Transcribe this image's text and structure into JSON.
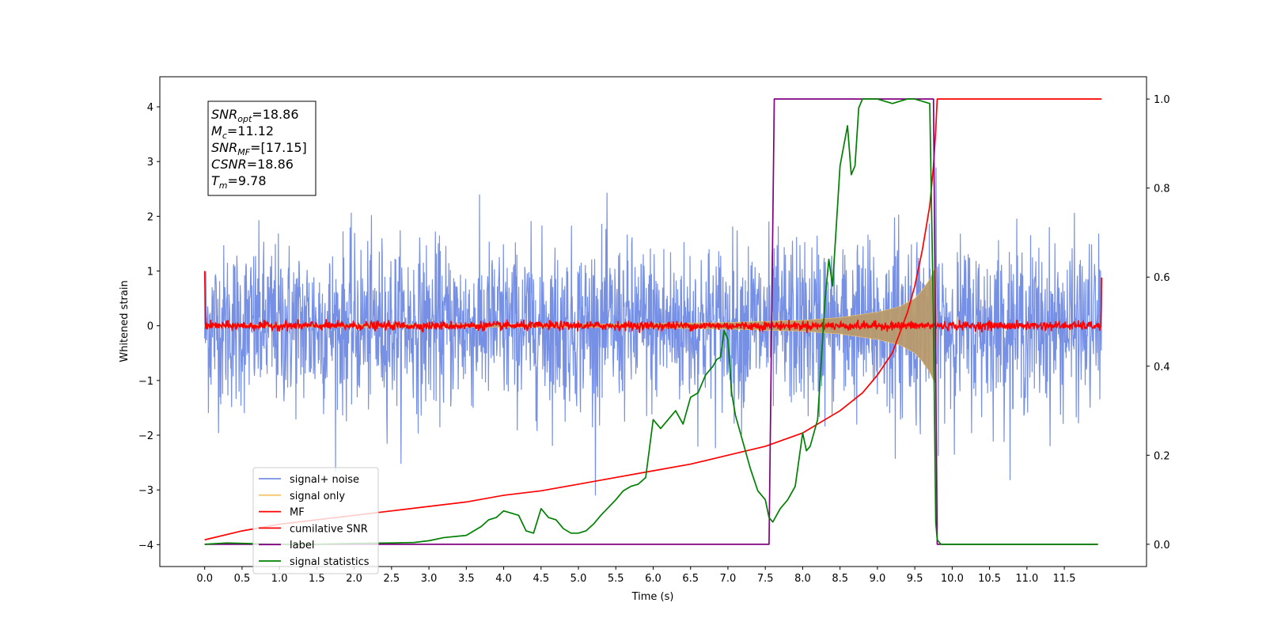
{
  "chart_data": {
    "type": "line",
    "title": "",
    "xlabel": "Time (s)",
    "ylabel": "Whitened strain",
    "xlim": [
      -0.6,
      12.6
    ],
    "ylim": [
      -4.4,
      4.55
    ],
    "y2lim": [
      -0.05,
      1.05
    ],
    "x_ticks": [
      0.0,
      0.5,
      1.0,
      1.5,
      2.0,
      2.5,
      3.0,
      3.5,
      4.0,
      4.5,
      5.0,
      5.5,
      6.0,
      6.5,
      7.0,
      7.5,
      8.0,
      8.5,
      9.0,
      9.5,
      10.0,
      10.5,
      11.0,
      11.5
    ],
    "x_tick_labels": [
      "0.0",
      "0.5",
      "1.0",
      "1.5",
      "2.0",
      "2.5",
      "3.0",
      "3.5",
      "4.0",
      "4.5",
      "5.0",
      "5.5",
      "6.0",
      "6.5",
      "7.0",
      "7.5",
      "8.0",
      "8.5",
      "9.0",
      "9.5",
      "10.0",
      "10.5",
      "11.0",
      "11.5"
    ],
    "y_ticks": [
      -4,
      -3,
      -2,
      -1,
      0,
      1,
      2,
      3,
      4
    ],
    "y_tick_labels": [
      "−4",
      "−3",
      "−2",
      "−1",
      "0",
      "1",
      "2",
      "3",
      "4"
    ],
    "y2_ticks": [
      0.0,
      0.2,
      0.4,
      0.6,
      0.8,
      1.0
    ],
    "y2_tick_labels": [
      "0.0",
      "0.2",
      "0.4",
      "0.6",
      "0.8",
      "1.0"
    ],
    "grid": false,
    "legend_position": "lower-left",
    "annotation": {
      "lines": [
        {
          "base": "SNR",
          "sub": "opt",
          "rest": "=18.86"
        },
        {
          "base": "M",
          "sub": "c",
          "rest": "=11.12"
        },
        {
          "base": "SNR",
          "sub": "MF",
          "rest": "=[17.15]"
        },
        {
          "base": "CSNR",
          "sub": "",
          "rest": "=18.86"
        },
        {
          "base": "T",
          "sub": "m",
          "rest": "=9.78"
        }
      ]
    },
    "series": [
      {
        "name": "signal+ noise",
        "axis": "left",
        "color": "#7690e6",
        "kind": "noise_band",
        "x_range": [
          0.0,
          12.0
        ],
        "std": 0.75,
        "range": [
          -4.0,
          4.0
        ],
        "chirp_x": [
          0.0,
          7.0,
          8.5,
          9.5,
          9.78,
          9.82
        ],
        "chirp_amp": [
          0.05,
          0.1,
          0.25,
          0.55,
          1.05,
          0.0
        ]
      },
      {
        "name": "signal only",
        "axis": "left",
        "color": "#f5c76c",
        "kind": "envelope",
        "x": [
          0.0,
          5.0,
          6.0,
          7.0,
          7.5,
          8.0,
          8.5,
          9.0,
          9.3,
          9.5,
          9.6,
          9.7,
          9.75,
          9.78,
          9.8
        ],
        "amplitude": [
          0.02,
          0.03,
          0.04,
          0.06,
          0.08,
          0.1,
          0.15,
          0.25,
          0.35,
          0.5,
          0.65,
          0.85,
          1.0,
          1.05,
          0.0
        ]
      },
      {
        "name": "MF",
        "axis": "left",
        "color": "#ff0000",
        "kind": "noise_line",
        "x_range": [
          0.0,
          12.0
        ],
        "std": 0.04,
        "start_value": 1.0,
        "end_value": 0.88
      },
      {
        "name": "cumilative SNR",
        "axis": "right",
        "color": "#ff0000",
        "kind": "line",
        "x": [
          0.0,
          0.5,
          1.0,
          1.5,
          2.0,
          2.5,
          3.0,
          3.5,
          4.0,
          4.5,
          5.0,
          5.5,
          6.0,
          6.5,
          7.0,
          7.5,
          8.0,
          8.5,
          8.8,
          9.0,
          9.2,
          9.4,
          9.5,
          9.6,
          9.7,
          9.75,
          9.78,
          9.8,
          12.0
        ],
        "y": [
          0.01,
          0.03,
          0.045,
          0.055,
          0.065,
          0.075,
          0.085,
          0.095,
          0.11,
          0.12,
          0.135,
          0.15,
          0.165,
          0.18,
          0.2,
          0.22,
          0.25,
          0.3,
          0.34,
          0.38,
          0.43,
          0.52,
          0.58,
          0.66,
          0.76,
          0.85,
          0.93,
          1.0,
          1.0
        ]
      },
      {
        "name": "label",
        "axis": "right",
        "color": "#800080",
        "kind": "line",
        "x": [
          0.0,
          7.55,
          7.62,
          9.75,
          9.8,
          11.95
        ],
        "y": [
          0.0,
          0.0,
          1.0,
          1.0,
          0.0,
          0.0
        ]
      },
      {
        "name": "signal statistics",
        "axis": "right",
        "color": "#008000",
        "kind": "line",
        "x": [
          0.0,
          0.3,
          0.5,
          1.0,
          1.5,
          2.0,
          2.5,
          2.8,
          3.0,
          3.2,
          3.5,
          3.7,
          3.8,
          3.9,
          4.0,
          4.1,
          4.2,
          4.3,
          4.4,
          4.5,
          4.6,
          4.7,
          4.8,
          4.9,
          5.0,
          5.1,
          5.2,
          5.3,
          5.5,
          5.6,
          5.7,
          5.8,
          5.9,
          6.0,
          6.05,
          6.1,
          6.2,
          6.3,
          6.4,
          6.5,
          6.6,
          6.7,
          6.8,
          6.85,
          6.9,
          6.95,
          7.0,
          7.05,
          7.1,
          7.2,
          7.3,
          7.4,
          7.5,
          7.55,
          7.6,
          7.7,
          7.8,
          7.9,
          8.0,
          8.05,
          8.1,
          8.2,
          8.3,
          8.35,
          8.4,
          8.5,
          8.6,
          8.65,
          8.7,
          8.75,
          8.8,
          9.0,
          9.2,
          9.4,
          9.5,
          9.7,
          9.75,
          9.78,
          9.8,
          9.85,
          10.0,
          11.95
        ],
        "y": [
          0.0,
          0.003,
          0.002,
          0.0,
          0.0,
          0.002,
          0.003,
          0.004,
          0.008,
          0.015,
          0.02,
          0.04,
          0.055,
          0.06,
          0.075,
          0.07,
          0.065,
          0.03,
          0.025,
          0.08,
          0.06,
          0.055,
          0.035,
          0.025,
          0.025,
          0.03,
          0.045,
          0.065,
          0.1,
          0.12,
          0.13,
          0.135,
          0.15,
          0.28,
          0.27,
          0.26,
          0.28,
          0.3,
          0.27,
          0.33,
          0.34,
          0.38,
          0.4,
          0.415,
          0.42,
          0.48,
          0.46,
          0.34,
          0.29,
          0.23,
          0.17,
          0.12,
          0.1,
          0.06,
          0.05,
          0.08,
          0.1,
          0.13,
          0.25,
          0.21,
          0.22,
          0.28,
          0.55,
          0.64,
          0.58,
          0.85,
          0.94,
          0.83,
          0.85,
          0.98,
          1.0,
          1.0,
          0.99,
          1.0,
          1.0,
          0.99,
          0.5,
          0.05,
          0.01,
          0.0,
          0.0,
          0.0
        ]
      }
    ]
  },
  "legend": [
    {
      "label": "signal+ noise",
      "color": "#7690e6"
    },
    {
      "label": "signal only",
      "color": "#f5c76c"
    },
    {
      "label": "MF",
      "color": "#ff0000"
    },
    {
      "label": "cumilative SNR",
      "color": "#ff0000"
    },
    {
      "label": "label",
      "color": "#800080"
    },
    {
      "label": "signal statistics",
      "color": "#008000"
    }
  ]
}
